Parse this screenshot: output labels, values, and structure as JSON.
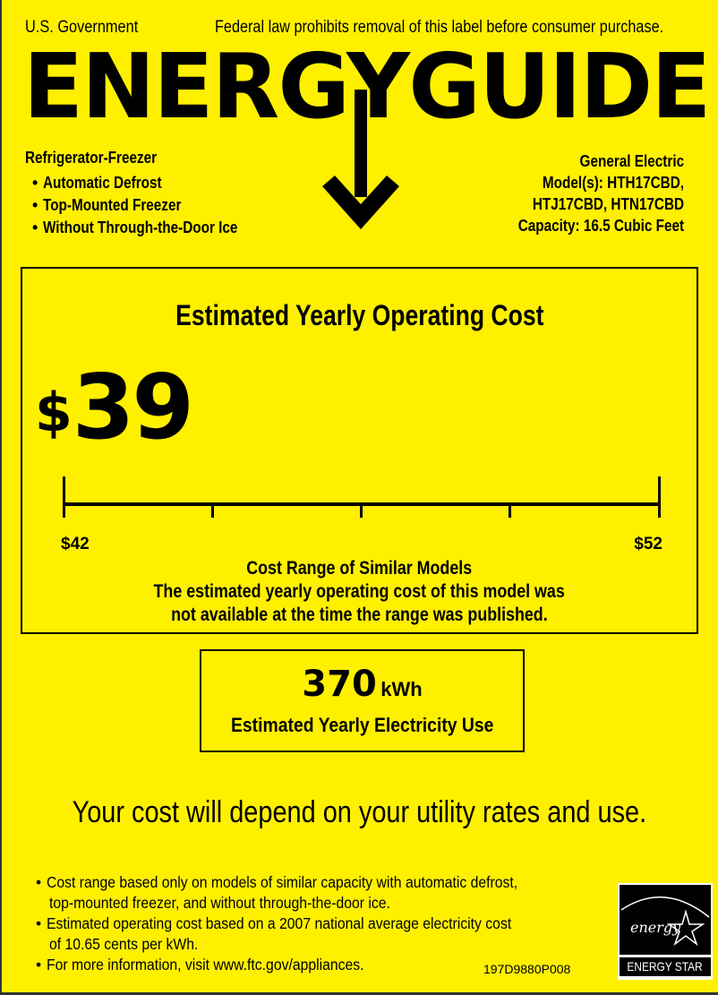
{
  "header": {
    "left": "U.S. Government",
    "right": "Federal law prohibits removal of this label before consumer purchase.",
    "logo": "ENERGYGUIDE"
  },
  "appliance": {
    "type": "Refrigerator-Freezer",
    "features": [
      "Automatic Defrost",
      "Top-Mounted Freezer",
      "Without Through-the-Door Ice"
    ]
  },
  "model": {
    "brand": "General Electric",
    "models_line1": "Model(s): HTH17CBD,",
    "models_line2": "HTJ17CBD, HTN17CBD",
    "capacity": "Capacity: 16.5 Cubic Feet"
  },
  "cost": {
    "title": "Estimated Yearly Operating Cost",
    "currency": "$",
    "value": "39",
    "range_min": "$42",
    "range_max": "$52",
    "range_title": "Cost Range of Similar Models",
    "note_line1": "The estimated yearly operating cost of this model was",
    "note_line2": "not available at the time the range was published."
  },
  "electricity": {
    "value": "370",
    "unit": "kWh",
    "label": "Estimated Yearly Electricity Use"
  },
  "disclaimer": "Your cost will depend on your utility rates and use.",
  "footnotes": [
    {
      "line1": "Cost range based only on models of similar capacity with automatic defrost,",
      "line2": "top-mounted freezer, and without through-the-door ice."
    },
    {
      "line1": "Estimated operating cost based on a 2007 national average electricity cost",
      "line2": "of 10.65 cents per kWh."
    },
    {
      "line1": "For more information, visit www.ftc.gov/appliances."
    }
  ],
  "label_code": "197D9880P008",
  "energy_star": {
    "script": "energy",
    "caption": "ENERGY STAR"
  },
  "colors": {
    "background": "#FFF000",
    "ink": "#000000"
  }
}
